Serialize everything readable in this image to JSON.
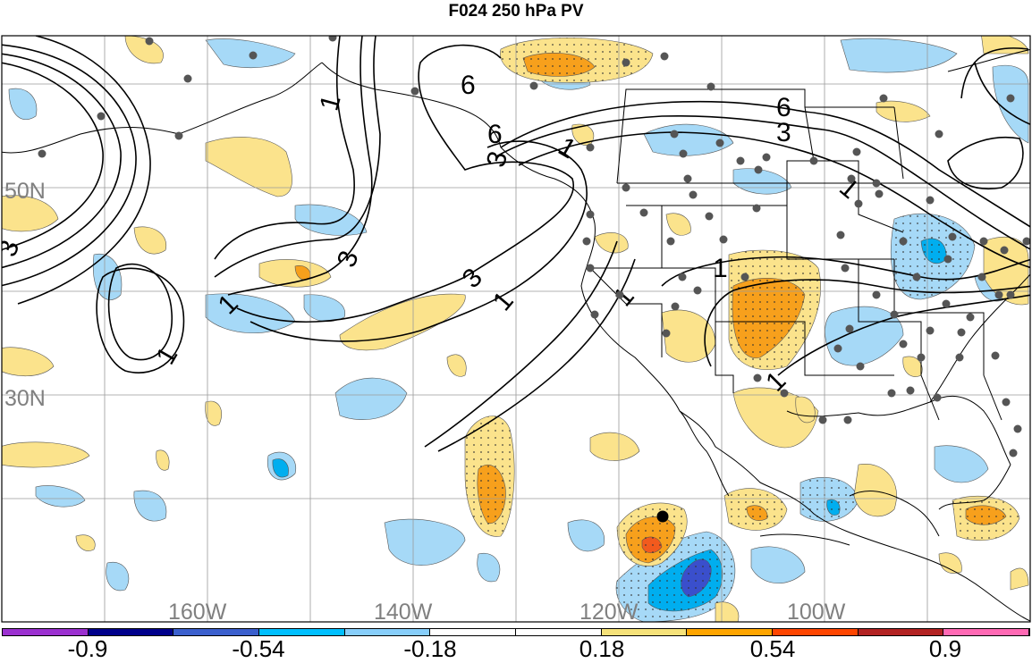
{
  "title": "F024 250 hPa PV",
  "lat_labels": [
    "50N",
    "30N"
  ],
  "lon_labels": [
    "160W",
    "140W",
    "120W",
    "100W"
  ],
  "contour_labels": [
    "1",
    "3",
    "6"
  ],
  "colorbar": {
    "colors": [
      "#9b30d0",
      "#00008b",
      "#3a5fcd",
      "#00bfff",
      "#87cefa",
      "#ffffff",
      "#ffffff",
      "#f6e27a",
      "#ffa500",
      "#ff4500",
      "#b22222",
      "#ff69b4"
    ],
    "labels": [
      "-0.9",
      "-0.54",
      "-0.18",
      "0.18",
      "0.54",
      "0.9"
    ]
  },
  "colors": {
    "light_blue": "#a6d9f7",
    "blue": "#00aeef",
    "dark_blue": "#3a4fcc",
    "light_yellow": "#fbe38c",
    "orange": "#f7a01c",
    "red_orange": "#f25a1d",
    "station_dot": "#555555"
  }
}
